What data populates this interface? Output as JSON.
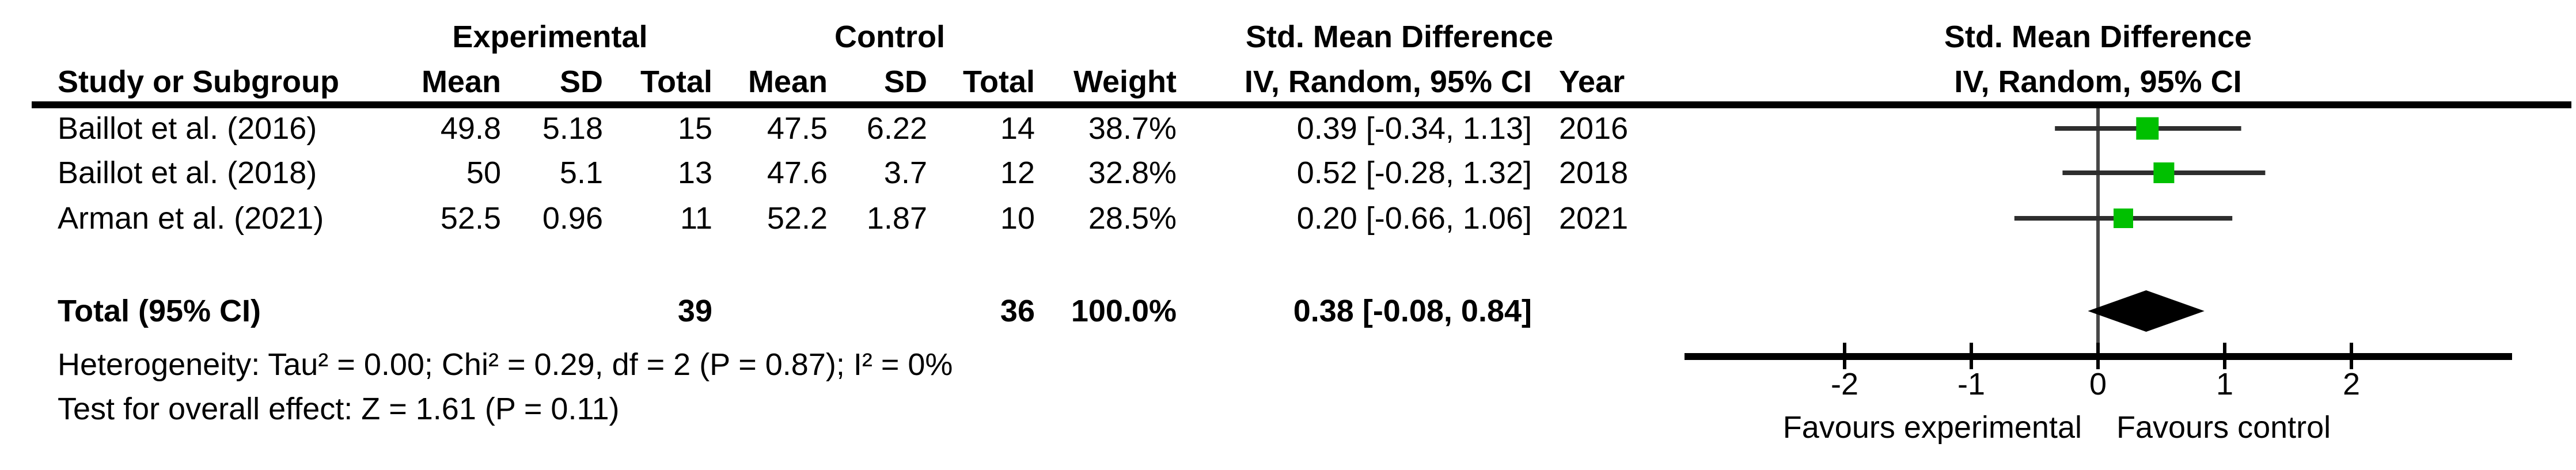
{
  "colors": {
    "marker_green": "#00C000",
    "ci_line": "#2e2e2e",
    "zero_line": "#474747",
    "axis_black": "#000000"
  },
  "table": {
    "group_headers": {
      "experimental": "Experimental",
      "control": "Control",
      "smd": "Std. Mean Difference"
    },
    "column_headers": {
      "study": "Study or Subgroup",
      "mean": "Mean",
      "sd": "SD",
      "total": "Total",
      "weight": "Weight",
      "ci": "IV, Random, 95% CI",
      "year": "Year"
    },
    "rows": [
      {
        "study": "Baillot et al. (2016)",
        "mean_e": "49.8",
        "sd_e": "5.18",
        "total_e": "15",
        "mean_c": "47.5",
        "sd_c": "6.22",
        "total_c": "14",
        "weight": "38.7%",
        "ci": "0.39 [-0.34, 1.13]",
        "year": "2016"
      },
      {
        "study": "Baillot et al. (2018)",
        "mean_e": "50",
        "sd_e": "5.1",
        "total_e": "13",
        "mean_c": "47.6",
        "sd_c": "3.7",
        "total_c": "12",
        "weight": "32.8%",
        "ci": "0.52 [-0.28, 1.32]",
        "year": "2018"
      },
      {
        "study": "Arman et al. (2021)",
        "mean_e": "52.5",
        "sd_e": "0.96",
        "total_e": "11",
        "mean_c": "52.2",
        "sd_c": "1.87",
        "total_c": "10",
        "weight": "28.5%",
        "ci": "0.20 [-0.66, 1.06]",
        "year": "2021"
      }
    ],
    "total_row": {
      "label": "Total (95% CI)",
      "total_e": "39",
      "total_c": "36",
      "weight": "100.0%",
      "ci": "0.38 [-0.08, 0.84]"
    },
    "footnotes": {
      "heterogeneity": "Heterogeneity: Tau² = 0.00; Chi² = 0.29, df = 2 (P = 0.87); I² = 0%",
      "overall_effect": "Test for overall effect: Z = 1.61 (P = 0.11)"
    }
  },
  "plot": {
    "header_line1": "Std. Mean Difference",
    "header_line2": "IV, Random, 95% CI",
    "favours_left": "Favours experimental",
    "favours_right": "Favours control"
  },
  "chart_data": {
    "type": "forest",
    "title": "Std. Mean Difference, IV, Random, 95% CI",
    "effect_model": "IV, Random, 95% CI",
    "x_axis": {
      "ticks": [
        -2,
        -1,
        0,
        1,
        2
      ],
      "drawn_range": [
        -3.25,
        3.25
      ],
      "zero_reference": 0
    },
    "studies": [
      {
        "name": "Baillot et al. (2016)",
        "smd": 0.39,
        "ci_low": -0.34,
        "ci_high": 1.13,
        "weight_pct": 38.7,
        "year": 2016
      },
      {
        "name": "Baillot et al. (2018)",
        "smd": 0.52,
        "ci_low": -0.28,
        "ci_high": 1.32,
        "weight_pct": 32.8,
        "year": 2018
      },
      {
        "name": "Arman et al. (2021)",
        "smd": 0.2,
        "ci_low": -0.66,
        "ci_high": 1.06,
        "weight_pct": 28.5,
        "year": 2021
      }
    ],
    "total": {
      "smd": 0.38,
      "ci_low": -0.08,
      "ci_high": 0.84
    },
    "heterogeneity": {
      "tau2": 0.0,
      "chi2": 0.29,
      "df": 2,
      "p": 0.87,
      "i2_pct": 0
    },
    "overall_effect": {
      "z": 1.61,
      "p": 0.11
    }
  }
}
